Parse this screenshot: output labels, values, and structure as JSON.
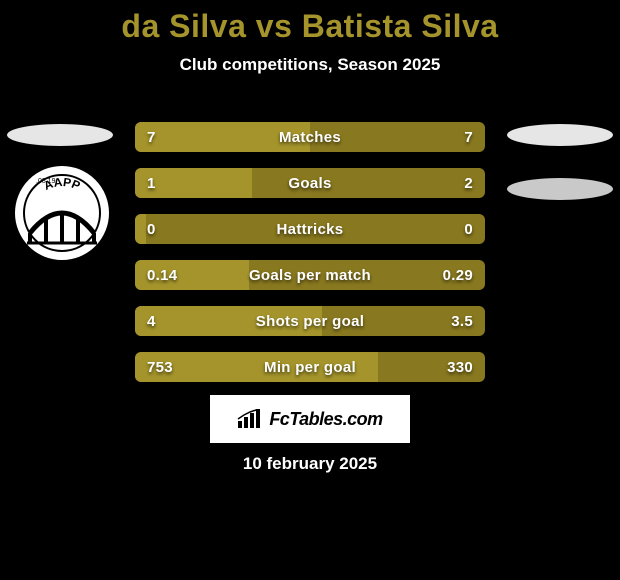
{
  "background_color": "#000000",
  "title": {
    "text": "da Silva vs Batista Silva",
    "color": "#a4942b",
    "fontsize": 32
  },
  "subtitle": {
    "text": "Club competitions, Season 2025",
    "color": "#ffffff",
    "fontsize": 17
  },
  "team_ellipses": {
    "left": {
      "color": "#e6e6e6"
    },
    "right1": {
      "color": "#e6e6e6"
    },
    "right2": {
      "color": "#c9c9c9"
    }
  },
  "club_badge": {
    "circle_bg": "#ffffff",
    "text_top": "AAPP",
    "text_color": "#000000"
  },
  "bars": {
    "track_color": "#88781f",
    "fill_color": "#a4942b",
    "label_color": "#ffffff",
    "rows": [
      {
        "label": "Matches",
        "left": "7",
        "right": "7",
        "fill_pct": 50.0
      },
      {
        "label": "Goals",
        "left": "1",
        "right": "2",
        "fill_pct": 33.3
      },
      {
        "label": "Hattricks",
        "left": "0",
        "right": "0",
        "fill_pct": 3.0
      },
      {
        "label": "Goals per match",
        "left": "0.14",
        "right": "0.29",
        "fill_pct": 32.6
      },
      {
        "label": "Shots per goal",
        "left": "4",
        "right": "3.5",
        "fill_pct": 53.3
      },
      {
        "label": "Min per goal",
        "left": "753",
        "right": "330",
        "fill_pct": 69.5
      }
    ]
  },
  "watermark": {
    "bg": "#ffffff",
    "text": "FcTables.com",
    "text_color": "#000000"
  },
  "date": {
    "text": "10 february 2025",
    "color": "#ffffff"
  }
}
